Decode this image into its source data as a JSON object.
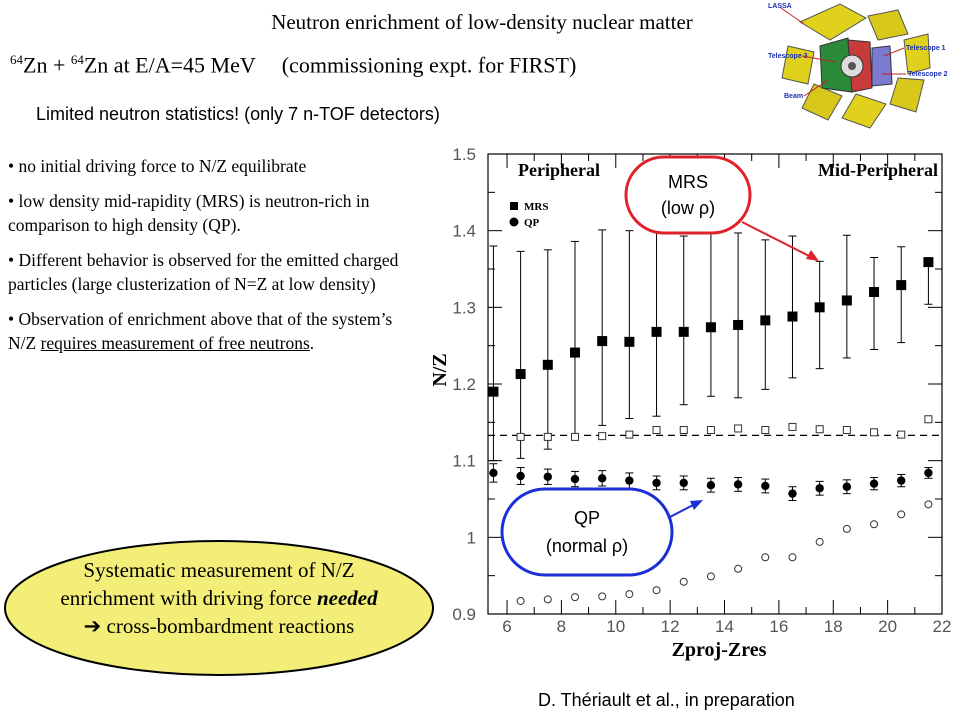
{
  "slide": {
    "title": "Neutron enrichment of low-density nuclear matter",
    "subtitle_sup1": "64",
    "subtitle_part1": "Zn + ",
    "subtitle_sup2": "64",
    "subtitle_part2": "Zn at E/A=45 MeV",
    "subtitle_part3": "(commissioning expt. for FIRST)",
    "note": "Limited neutron statistics! (only 7 n-TOF detectors)",
    "bullets": [
      "no initial driving force to N/Z equilibrate",
      "low density mid-rapidity (MRS) is neutron-rich in comparison to high density (QP).",
      "Different behavior is observed for the emitted charged particles (large clusterization of N=Z at low density)"
    ],
    "bullet4_plain": "Observation of enrichment above that of the system’s N/Z ",
    "bullet4_underlined": "requires measurement of free neutrons",
    "bullet4_end": ".",
    "conclusion_line1": "Systematic measurement of N/Z",
    "conclusion_line2a": "enrichment with driving force ",
    "conclusion_line2b": "needed",
    "conclusion_arrow": "➔",
    "conclusion_line3": " cross-bombardment reactions",
    "credit": "D. Thériault et al., in preparation",
    "bubble_color": "#f2ee78",
    "mrs_circle_color": "#e0202a",
    "qp_circle_color": "#1a2fd6"
  },
  "detector_labels": {
    "lassa": "LASSA",
    "t1": "Telescope 1",
    "t2": "Telescope 2",
    "t3": "Telescope 3",
    "beam": "Beam"
  },
  "chart_data": {
    "type": "scatter",
    "xlabel": "Zproj-Zres",
    "ylabel": "N/Z",
    "xlim": [
      5.3,
      22
    ],
    "ylim": [
      0.9,
      1.5
    ],
    "xticks": [
      6,
      8,
      10,
      12,
      14,
      16,
      18,
      20,
      22
    ],
    "yticks": [
      0.9,
      1,
      1.1,
      1.2,
      1.3,
      1.4,
      1.5
    ],
    "yticklabels": [
      "0.9",
      "1",
      "1.1",
      "1.2",
      "1.3",
      "1.4",
      "1.5"
    ],
    "region_left": "Peripheral",
    "region_right": "Mid-Peripheral",
    "legend_position": "top-left",
    "reference_line_y": 1.133,
    "x": [
      5.5,
      6.5,
      7.5,
      8.5,
      9.5,
      10.5,
      11.5,
      12.5,
      13.5,
      14.5,
      15.5,
      16.5,
      17.5,
      18.5,
      19.5,
      20.5,
      21.5
    ],
    "series": [
      {
        "name": "MRS",
        "marker": "filled-square",
        "values": [
          1.19,
          1.213,
          1.225,
          1.241,
          1.256,
          1.255,
          1.268,
          1.268,
          1.274,
          1.277,
          1.283,
          1.288,
          1.3,
          1.309,
          1.32,
          1.329,
          1.359
        ],
        "err_low": [
          0.09,
          0.11,
          0.11,
          0.11,
          0.11,
          0.1,
          0.11,
          0.095,
          0.09,
          0.095,
          0.09,
          0.08,
          0.08,
          0.075,
          0.075,
          0.075,
          0.055
        ],
        "err_high": [
          0.19,
          0.16,
          0.15,
          0.145,
          0.145,
          0.145,
          0.14,
          0.125,
          0.14,
          0.12,
          0.105,
          0.105,
          0.06,
          0.085,
          0.045,
          0.05,
          0.0
        ]
      },
      {
        "name": "QP",
        "marker": "filled-circle",
        "values": [
          1.084,
          1.08,
          1.079,
          1.076,
          1.077,
          1.074,
          1.071,
          1.071,
          1.068,
          1.069,
          1.067,
          1.057,
          1.064,
          1.066,
          1.07,
          1.074,
          1.084
        ],
        "err_low": [
          0.012,
          0.011,
          0.01,
          0.01,
          0.01,
          0.01,
          0.009,
          0.009,
          0.009,
          0.009,
          0.009,
          0.009,
          0.009,
          0.009,
          0.008,
          0.008,
          0.007
        ],
        "err_high": [
          0.012,
          0.011,
          0.01,
          0.01,
          0.01,
          0.01,
          0.009,
          0.009,
          0.009,
          0.009,
          0.009,
          0.009,
          0.009,
          0.009,
          0.008,
          0.008,
          0.007
        ]
      },
      {
        "name": "",
        "marker": "open-square",
        "values": [
          null,
          1.131,
          1.131,
          1.131,
          1.132,
          1.134,
          1.14,
          1.14,
          1.14,
          1.142,
          1.14,
          1.144,
          1.141,
          1.14,
          1.137,
          1.134,
          1.154
        ]
      },
      {
        "name": "",
        "marker": "open-circle",
        "values": [
          null,
          0.917,
          0.919,
          0.922,
          0.923,
          0.926,
          0.931,
          0.942,
          0.949,
          0.959,
          0.974,
          0.974,
          0.994,
          1.011,
          1.017,
          1.03,
          1.043
        ]
      }
    ]
  },
  "callouts": {
    "mrs_line1": "MRS",
    "mrs_line2": "(low ρ)",
    "qp_line1": "QP",
    "qp_line2": "(normal ρ)"
  }
}
